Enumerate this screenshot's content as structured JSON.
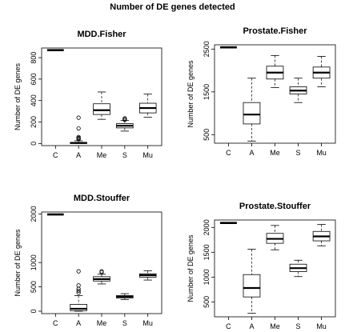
{
  "title": "Number of DE genes detected",
  "chart_data": [
    {
      "type": "boxplot",
      "title": "MDD.Fisher",
      "ylabel": "Number of DE genes",
      "categories": [
        "C",
        "A",
        "Me",
        "S",
        "Mu"
      ],
      "yticks": [
        0,
        200,
        400,
        600,
        800
      ],
      "ylim": [
        -20,
        890
      ],
      "boxes": [
        {
          "category": "C",
          "constant": 870
        },
        {
          "category": "A",
          "min": 0,
          "q1": 0,
          "median": 5,
          "q3": 10,
          "max": 25,
          "outliers": [
            240,
            140,
            60,
            50,
            45,
            40
          ]
        },
        {
          "category": "Me",
          "min": 225,
          "q1": 270,
          "median": 310,
          "q3": 370,
          "max": 480,
          "outliers": []
        },
        {
          "category": "S",
          "min": 115,
          "q1": 145,
          "median": 165,
          "q3": 185,
          "max": 215,
          "outliers": [
            235,
            225,
            220
          ]
        },
        {
          "category": "Mu",
          "min": 245,
          "q1": 285,
          "median": 330,
          "q3": 375,
          "max": 460,
          "outliers": []
        }
      ]
    },
    {
      "type": "boxplot",
      "title": "Prostate.Fisher",
      "ylabel": "Number of DE genes",
      "categories": [
        "C",
        "A",
        "Me",
        "S",
        "Mu"
      ],
      "yticks": [
        500,
        1500,
        2500
      ],
      "ylim": [
        300,
        2600
      ],
      "boxes": [
        {
          "category": "C",
          "constant": 2540
        },
        {
          "category": "A",
          "min": 350,
          "q1": 750,
          "median": 970,
          "q3": 1250,
          "max": 1820,
          "outliers": []
        },
        {
          "category": "Me",
          "min": 1600,
          "q1": 1800,
          "median": 1950,
          "q3": 2100,
          "max": 2350,
          "outliers": []
        },
        {
          "category": "S",
          "min": 1250,
          "q1": 1450,
          "median": 1530,
          "q3": 1620,
          "max": 1820,
          "outliers": []
        },
        {
          "category": "Mu",
          "min": 1620,
          "q1": 1820,
          "median": 1950,
          "q3": 2080,
          "max": 2330,
          "outliers": []
        }
      ]
    },
    {
      "type": "boxplot",
      "title": "MDD.Stouffer",
      "ylabel": "Number of DE genes",
      "categories": [
        "C",
        "A",
        "Me",
        "S",
        "Mu"
      ],
      "yticks": [
        0,
        500,
        1000,
        2000
      ],
      "ylim": [
        -50,
        2040
      ],
      "boxes": [
        {
          "category": "C",
          "constant": 1990
        },
        {
          "category": "A",
          "min": 0,
          "q1": 10,
          "median": 50,
          "q3": 140,
          "max": 320,
          "outliers": [
            820,
            530,
            460,
            420,
            380
          ]
        },
        {
          "category": "Me",
          "min": 560,
          "q1": 620,
          "median": 660,
          "q3": 710,
          "max": 760,
          "outliers": [
            800,
            820
          ]
        },
        {
          "category": "S",
          "min": 240,
          "q1": 270,
          "median": 300,
          "q3": 320,
          "max": 360,
          "outliers": []
        },
        {
          "category": "Mu",
          "min": 640,
          "q1": 700,
          "median": 740,
          "q3": 770,
          "max": 830,
          "outliers": []
        }
      ]
    },
    {
      "type": "boxplot",
      "title": "Prostate.Stouffer",
      "ylabel": "Number of DE genes",
      "categories": [
        "C",
        "A",
        "Me",
        "S",
        "Mu"
      ],
      "yticks": [
        500,
        1000,
        1500,
        2000
      ],
      "ylim": [
        200,
        2150
      ],
      "boxes": [
        {
          "category": "C",
          "constant": 2090
        },
        {
          "category": "A",
          "min": 270,
          "q1": 600,
          "median": 780,
          "q3": 1050,
          "max": 1560,
          "outliers": []
        },
        {
          "category": "Me",
          "min": 1550,
          "q1": 1680,
          "median": 1770,
          "q3": 1880,
          "max": 2040,
          "outliers": []
        },
        {
          "category": "S",
          "min": 1010,
          "q1": 1110,
          "median": 1180,
          "q3": 1260,
          "max": 1340,
          "outliers": []
        },
        {
          "category": "Mu",
          "min": 1630,
          "q1": 1730,
          "median": 1820,
          "q3": 1920,
          "max": 2060,
          "outliers": []
        }
      ]
    }
  ]
}
